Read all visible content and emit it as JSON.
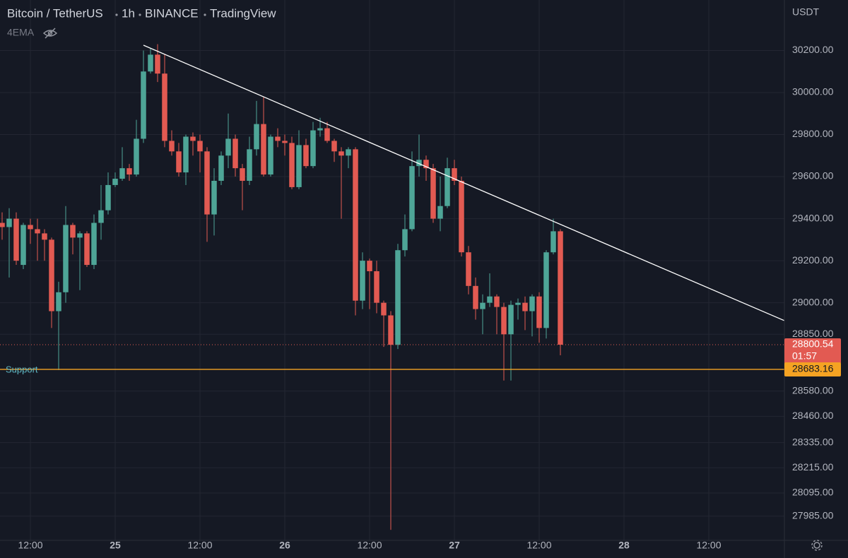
{
  "chart_data": {
    "type": "candlestick",
    "title": "Bitcoin / TetherUS",
    "interval": "1h",
    "exchange": "BINANCE",
    "source": "TradingView",
    "indicator": "4EMA",
    "currency": "USDT",
    "up_color": "#4ea597",
    "down_color": "#e25a52",
    "grid": true,
    "open": [
      29380,
      29360,
      29400,
      29180,
      29370,
      29350,
      29330,
      29300,
      28960,
      29050,
      29370,
      29310,
      29330,
      29180,
      29380,
      29440,
      29560,
      29590,
      29640,
      29610,
      29780,
      30100,
      30180,
      30090,
      29770,
      29720,
      29620,
      29790,
      29770,
      29720,
      29420,
      29580,
      29700,
      29780,
      29640,
      29580,
      29730,
      29850,
      29610,
      29790,
      29770,
      29760,
      29550,
      29750,
      29650,
      29820,
      29830,
      29770,
      29720,
      29700,
      29730,
      29010,
      29200,
      29150,
      29000,
      28940,
      28800,
      29250,
      29350,
      29650,
      29680,
      29640,
      29400,
      29460,
      29640,
      29580,
      29240,
      29080,
      28970,
      29000,
      29030,
      28980,
      28850,
      28990,
      29000,
      28960,
      29030,
      28880,
      29240,
      29340
    ],
    "high": [
      29430,
      29450,
      29430,
      29380,
      29400,
      29400,
      29350,
      29310,
      29100,
      29460,
      29380,
      29340,
      29340,
      29420,
      29560,
      29620,
      29620,
      29740,
      29660,
      29870,
      30200,
      30210,
      30230,
      30180,
      29820,
      29760,
      29800,
      29810,
      29800,
      29740,
      29640,
      29720,
      29900,
      29800,
      29660,
      29790,
      29960,
      29980,
      29800,
      29830,
      29800,
      29790,
      29820,
      29780,
      29860,
      29880,
      29860,
      29780,
      29740,
      29740,
      29740,
      29240,
      29210,
      29200,
      29010,
      28960,
      29280,
      29420,
      29720,
      29800,
      29700,
      29660,
      29600,
      29690,
      29680,
      29600,
      29270,
      29120,
      29040,
      29140,
      29040,
      29000,
      29010,
      29020,
      29030,
      29040,
      29050,
      29250,
      29400,
      29350
    ],
    "low": [
      29300,
      29120,
      29180,
      29160,
      29280,
      29200,
      29200,
      28880,
      28680,
      29000,
      29230,
      29060,
      29170,
      29160,
      29300,
      29420,
      29550,
      29580,
      29580,
      29600,
      29760,
      30090,
      30050,
      29740,
      29700,
      29600,
      29560,
      29700,
      29620,
      29290,
      29320,
      29560,
      29640,
      29600,
      29440,
      29560,
      29700,
      29600,
      29600,
      29740,
      29700,
      29540,
      29540,
      29640,
      29640,
      29790,
      29760,
      29670,
      29400,
      29640,
      28940,
      28970,
      28970,
      28950,
      28790,
      27920,
      28780,
      29220,
      29340,
      29600,
      29580,
      29380,
      29340,
      29450,
      29560,
      29220,
      29040,
      28920,
      28850,
      28980,
      28850,
      28630,
      28630,
      28920,
      28870,
      28840,
      28810,
      28830,
      29230,
      28750
    ],
    "close": [
      29360,
      29400,
      29200,
      29370,
      29350,
      29330,
      29300,
      28960,
      29050,
      29370,
      29310,
      29330,
      29180,
      29380,
      29440,
      29560,
      29590,
      29640,
      29610,
      29780,
      30100,
      30180,
      30090,
      29770,
      29720,
      29620,
      29790,
      29770,
      29720,
      29420,
      29580,
      29700,
      29780,
      29640,
      29580,
      29730,
      29850,
      29610,
      29790,
      29770,
      29760,
      29550,
      29750,
      29650,
      29820,
      29830,
      29770,
      29720,
      29700,
      29730,
      29010,
      29200,
      29150,
      29000,
      28940,
      28800,
      29250,
      29350,
      29650,
      29680,
      29640,
      29400,
      29460,
      29640,
      29580,
      29240,
      29080,
      28970,
      29000,
      29030,
      28980,
      28850,
      28990,
      29000,
      28960,
      29030,
      28880,
      29240,
      29340,
      28800.54
    ],
    "xlim": [
      -0.3,
      110.7
    ],
    "xticks": [
      {
        "value": 4,
        "label": "12:00"
      },
      {
        "value": 16,
        "label": "25"
      },
      {
        "value": 28,
        "label": "12:00"
      },
      {
        "value": 40,
        "label": "26"
      },
      {
        "value": 52,
        "label": "12:00"
      },
      {
        "value": 64,
        "label": "27"
      },
      {
        "value": 76,
        "label": "12:00"
      },
      {
        "value": 88,
        "label": "28"
      },
      {
        "value": 100,
        "label": "12:00"
      }
    ],
    "ylim": [
      27870,
      30440
    ],
    "yticks": [
      {
        "value": 30200,
        "label": "30200.00"
      },
      {
        "value": 30000,
        "label": "30000.00"
      },
      {
        "value": 29800,
        "label": "29800.00"
      },
      {
        "value": 29600,
        "label": "29600.00"
      },
      {
        "value": 29400,
        "label": "29400.00"
      },
      {
        "value": 29200,
        "label": "29200.00"
      },
      {
        "value": 29000,
        "label": "29000.00"
      },
      {
        "value": 28850,
        "label": "28850.00"
      },
      {
        "value": 28580,
        "label": "28580.00"
      },
      {
        "value": 28460,
        "label": "28460.00"
      },
      {
        "value": 28335,
        "label": "28335.00"
      },
      {
        "value": 28215,
        "label": "28215.00"
      },
      {
        "value": 28095,
        "label": "28095.00"
      },
      {
        "value": 27985,
        "label": "27985.00"
      }
    ],
    "last_price": 28800.54,
    "countdown": "01:57",
    "support": {
      "label": "Support",
      "value": 28683.16,
      "color": "#f5a323"
    },
    "trendline": {
      "x": [
        20,
        110.7
      ],
      "y": [
        30225,
        28915
      ],
      "color": "#ffffff"
    }
  }
}
